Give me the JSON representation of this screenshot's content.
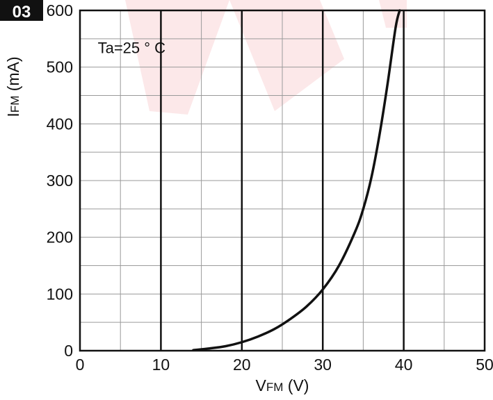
{
  "figure_badge": "03",
  "colors": {
    "background": "#ffffff",
    "axis": "#111111",
    "major_grid": "#111111",
    "minor_grid": "#9a9a9a",
    "curve": "#111111",
    "badge_bg": "#111111",
    "badge_text": "#ffffff",
    "watermark": "#e8424a"
  },
  "chart_data": {
    "type": "line",
    "title": "",
    "annotation": "Ta=25 ° C",
    "xlabel": {
      "main": "V",
      "sub": "FM",
      "unit": " (V)"
    },
    "ylabel": {
      "main": "I",
      "sub": "FM",
      "unit": " (mA)"
    },
    "xlim": [
      0,
      50
    ],
    "ylim": [
      0,
      600
    ],
    "x_ticks": [
      0,
      10,
      20,
      30,
      40,
      50
    ],
    "y_ticks": [
      0,
      100,
      200,
      300,
      400,
      500,
      600
    ],
    "x_minor_step": 5,
    "y_minor_step": 50,
    "x_major_emphasis": [
      10,
      20,
      30,
      40
    ],
    "grid": true,
    "series": [
      {
        "x": [
          14,
          16,
          18,
          20,
          22,
          24,
          26,
          28,
          30,
          32,
          34,
          35,
          36,
          37,
          38,
          39,
          39.5
        ],
        "y": [
          1,
          4,
          8,
          15,
          25,
          38,
          56,
          78,
          108,
          150,
          210,
          250,
          305,
          380,
          470,
          570,
          600
        ]
      }
    ]
  }
}
